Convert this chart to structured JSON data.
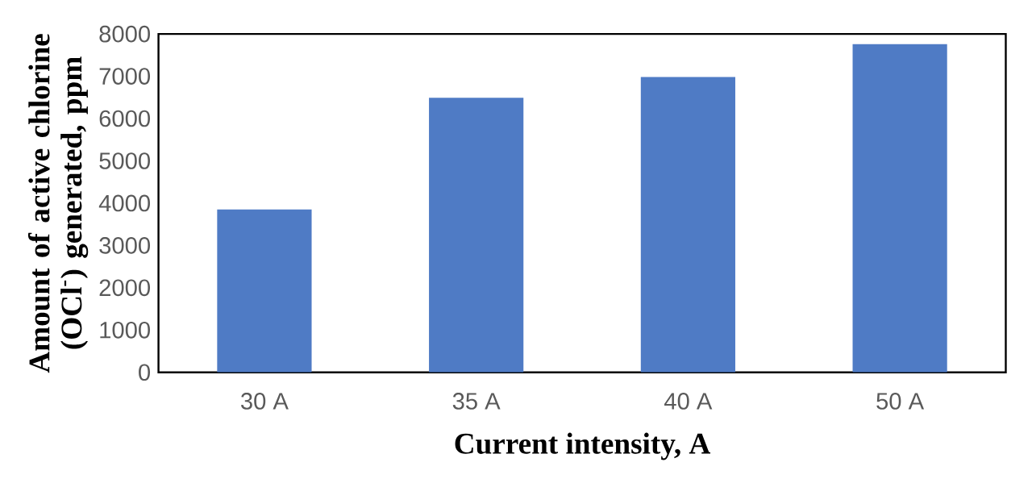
{
  "chart_data": {
    "type": "bar",
    "xlabel": "Current intensity, A",
    "ylabel": "Amount of active chlorine (OCl$^{-}$) generated, ppm",
    "categories": [
      "30 A",
      "35 A",
      "40 A",
      "50 A"
    ],
    "values": [
      3850,
      6490,
      6980,
      7760
    ],
    "color": "#4f7bc5",
    "ylim": [
      0,
      8000
    ],
    "yticks": [
      0,
      1000,
      2000,
      3000,
      4000,
      5000,
      6000,
      7000,
      8000
    ],
    "grid": false
  }
}
